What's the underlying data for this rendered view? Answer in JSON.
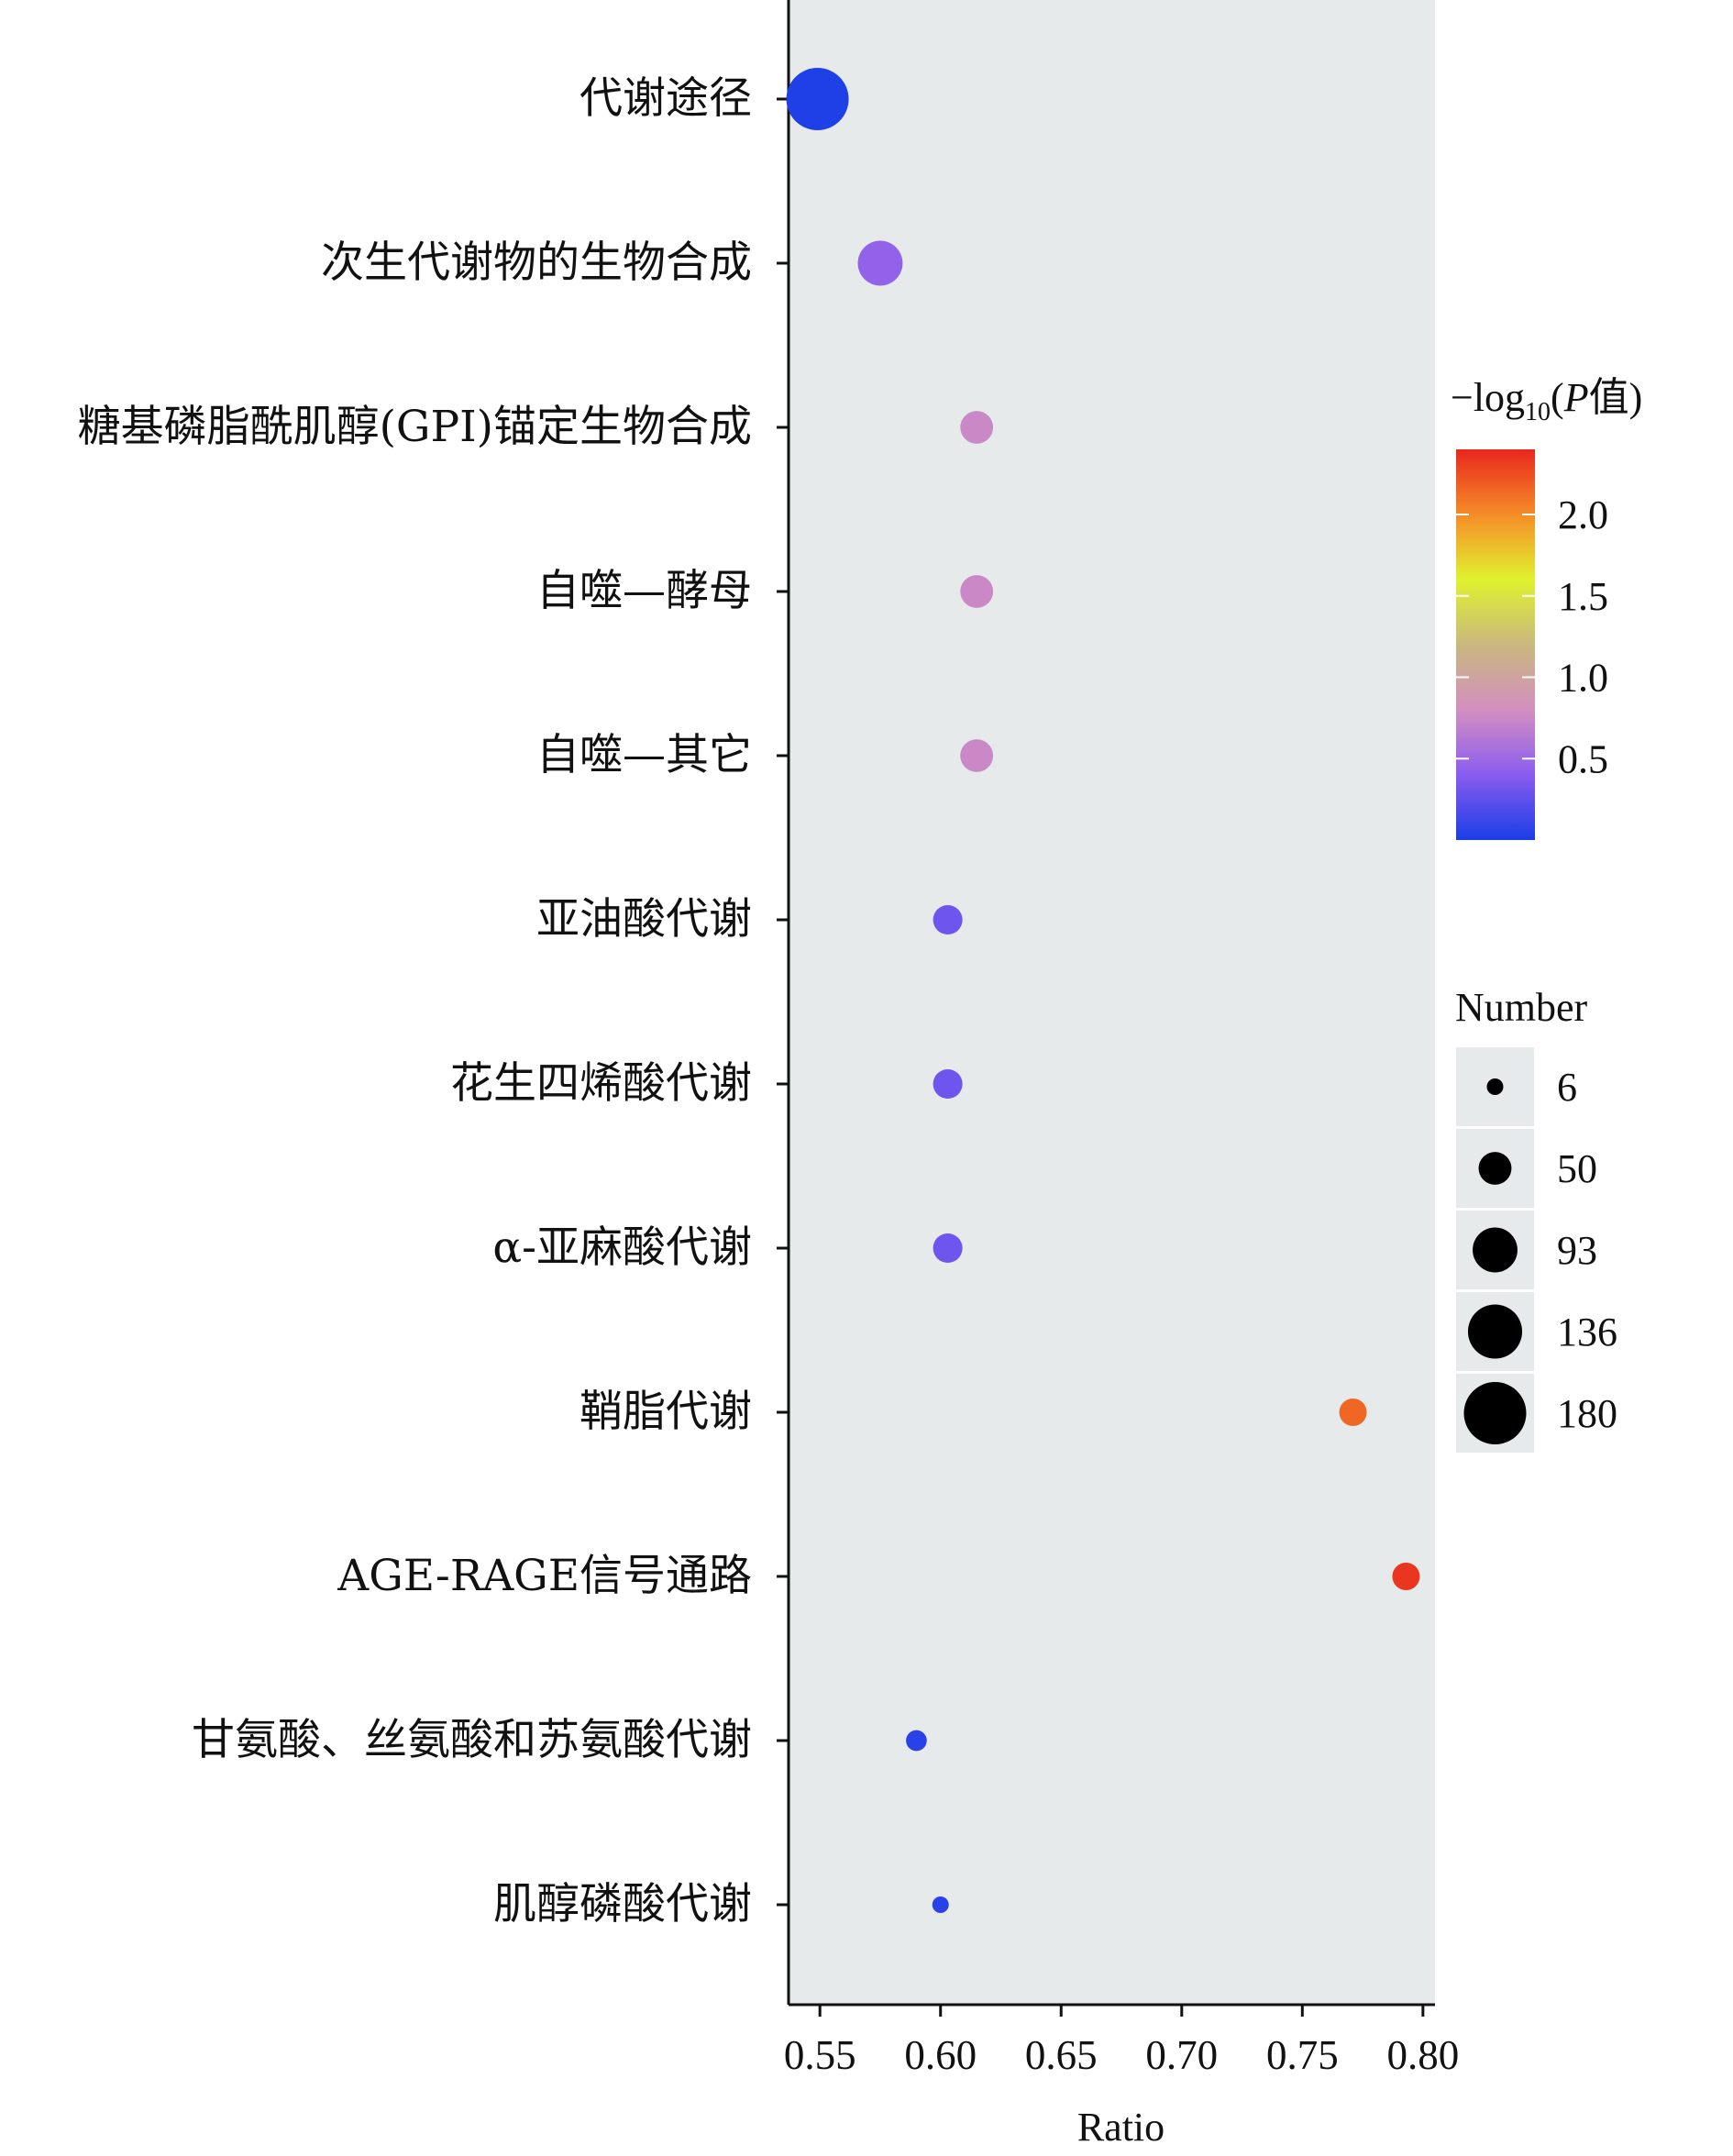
{
  "chart_data": {
    "type": "scatter",
    "xlabel": "Ratio",
    "ylabel": "",
    "xlim": [
      0.537,
      0.805
    ],
    "xticks": [
      "0.55",
      "0.60",
      "0.65",
      "0.70",
      "0.75",
      "0.80"
    ],
    "grid": false,
    "points": [
      {
        "category": "代谢途径",
        "x": 0.549,
        "number": 180,
        "neglog10p": 0.02
      },
      {
        "category": "次生代谢物的生物合成",
        "x": 0.575,
        "number": 93,
        "neglog10p": 0.45
      },
      {
        "category": "糖基磷脂酰肌醇(GPI)锚定生物合成",
        "x": 0.615,
        "number": 50,
        "neglog10p": 0.75
      },
      {
        "category": "自噬—酵母",
        "x": 0.615,
        "number": 50,
        "neglog10p": 0.75
      },
      {
        "category": "自噬—其它",
        "x": 0.615,
        "number": 50,
        "neglog10p": 0.75
      },
      {
        "category": "亚油酸代谢",
        "x": 0.603,
        "number": 40,
        "neglog10p": 0.3
      },
      {
        "category": "花生四烯酸代谢",
        "x": 0.603,
        "number": 40,
        "neglog10p": 0.3
      },
      {
        "category": "α-亚麻酸代谢",
        "x": 0.603,
        "number": 40,
        "neglog10p": 0.3
      },
      {
        "category": "鞘脂代谢",
        "x": 0.771,
        "number": 35,
        "neglog10p": 2.15
      },
      {
        "category": "AGE-RAGE信号通路",
        "x": 0.793,
        "number": 35,
        "neglog10p": 2.35
      },
      {
        "category": "甘氨酸、丝氨酸和苏氨酸代谢",
        "x": 0.59,
        "number": 20,
        "neglog10p": 0.05
      },
      {
        "category": "肌醇磷酸代谢",
        "x": 0.6,
        "number": 6,
        "neglog10p": 0.05
      }
    ],
    "color_legend": {
      "title_prefix": "−log",
      "title_sub": "10",
      "title_p": "P",
      "title_suffix": "值",
      "title_open": "(",
      "title_close": ")",
      "range": [
        0,
        2.4
      ],
      "ticks": [
        {
          "label": "2.0",
          "value": 2.0
        },
        {
          "label": "1.5",
          "value": 1.5
        },
        {
          "label": "1.0",
          "value": 1.0
        },
        {
          "label": "0.5",
          "value": 0.5
        }
      ],
      "colors": [
        "#1a3ee6",
        "#8a5cf0",
        "#d38fc0",
        "#c9b87e",
        "#dff22e",
        "#f58c28",
        "#e8281e"
      ]
    },
    "size_legend": {
      "title": "Number",
      "entries": [
        {
          "label": "6",
          "number": 6
        },
        {
          "label": "50",
          "number": 50
        },
        {
          "label": "93",
          "number": 93
        },
        {
          "label": "136",
          "number": 136
        },
        {
          "label": "180",
          "number": 180
        }
      ]
    },
    "panel_background": "#e6eaea"
  }
}
